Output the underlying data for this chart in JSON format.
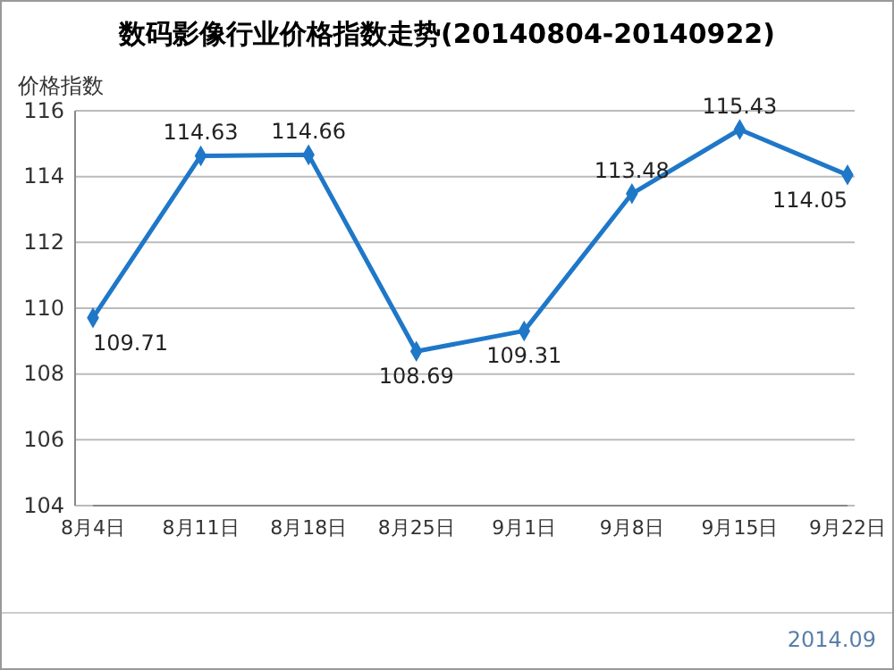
{
  "chart_data": {
    "type": "line",
    "title": "数码影像行业价格指数走势(20140804-20140922)",
    "ylabel": "价格指数",
    "categories": [
      "8月4日",
      "8月11日",
      "8月18日",
      "8月25日",
      "9月1日",
      "9月8日",
      "9月15日",
      "9月22日"
    ],
    "values": [
      109.71,
      114.63,
      114.66,
      108.69,
      109.31,
      113.48,
      115.43,
      114.05
    ],
    "color": "#1f77c8",
    "ylim": [
      104,
      116
    ],
    "yticks": [
      104,
      106,
      108,
      110,
      112,
      114,
      116
    ],
    "grid": "y",
    "marker": "diamond",
    "line_style": "solid",
    "data_labels": true,
    "annotations": [
      "2014.09"
    ]
  }
}
